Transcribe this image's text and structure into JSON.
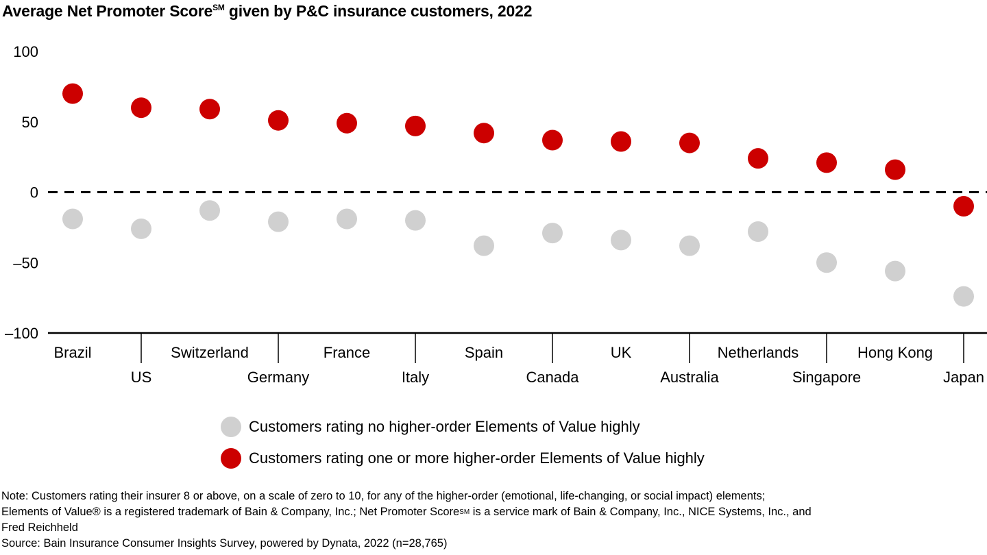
{
  "chart_data": {
    "type": "scatter",
    "title": "Average Net Promoter Score",
    "title_superscript": "SM",
    "title_suffix": " given by P&C insurance customers, 2022",
    "xlabel": "",
    "ylabel": "",
    "ylim": [
      -100,
      100
    ],
    "yticks": [
      100,
      50,
      0,
      -50,
      -100
    ],
    "ytick_labels": [
      "100",
      "50",
      "0",
      "–50",
      "–100"
    ],
    "reference_line": {
      "value": 0,
      "style": "dashed"
    },
    "grid": false,
    "legend_position": "bottom-center",
    "categories": [
      "Brazil",
      "US",
      "Switzerland",
      "Germany",
      "France",
      "Italy",
      "Spain",
      "Canada",
      "UK",
      "Australia",
      "Netherlands",
      "Singapore",
      "Hong Kong",
      "Japan"
    ],
    "series": [
      {
        "name": "Customers rating no higher-order Elements of Value highly",
        "color": "#d0d0d0",
        "values": [
          -19,
          -26,
          -13,
          -21,
          -19,
          -20,
          -38,
          -29,
          -34,
          -38,
          -28,
          -50,
          -56,
          -74
        ]
      },
      {
        "name": "Customers rating one or more higher-order Elements of Value highly",
        "color": "#cc0000",
        "values": [
          70,
          60,
          59,
          51,
          49,
          47,
          42,
          37,
          36,
          35,
          24,
          21,
          16,
          -10
        ]
      }
    ]
  },
  "notes": {
    "line1": "Note: Customers rating their insurer 8 or above, on a scale of zero to 10, for any of the higher-order (emotional, life-changing, or social impact) elements;",
    "line2_a": "Elements of Value® is a registered trademark of Bain & Company, Inc.; Net Promoter Score",
    "line2_sup": "SM",
    "line2_b": " is a service mark of Bain & Company, Inc., NICE Systems, Inc., and",
    "line3": "Fred Reichheld",
    "source": "Source: Bain Insurance Consumer Insights Survey, powered by Dynata, 2022 (n=28,765)"
  }
}
